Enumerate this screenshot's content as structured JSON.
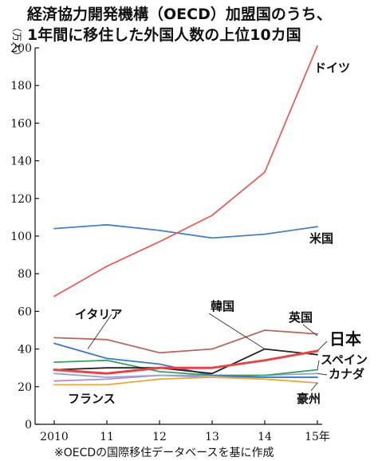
{
  "header": {
    "title_line1": "経済協力開発機構（OECD）加盟国のうち、",
    "title_line2": "1年間に移住した外国人数の上位10カ国",
    "unit": "（万人）"
  },
  "footnote": "※OECDの国際移住データベースを基に作成",
  "chart_data": {
    "type": "line",
    "title": "経済協力開発機構（OECD）加盟国のうち、1年間に移住した外国人数の上位10カ国",
    "ylabel": "（万人）",
    "xlabel": "",
    "ylim": [
      0,
      200
    ],
    "yticks": [
      0,
      20,
      40,
      60,
      80,
      100,
      120,
      140,
      160,
      180,
      200
    ],
    "x": [
      2010,
      2011,
      2012,
      2013,
      2014,
      2015
    ],
    "xtick_labels": [
      "2010",
      "11",
      "12",
      "13",
      "14",
      "15年"
    ],
    "grid": false,
    "legend": "direct-labels",
    "series": [
      {
        "name": "ドイツ",
        "color": "#e0605a",
        "values": [
          68,
          84,
          97,
          111,
          134,
          201
        ]
      },
      {
        "name": "米国",
        "color": "#4a7fc0",
        "values": [
          104,
          106,
          103,
          99,
          101,
          105
        ]
      },
      {
        "name": "英国",
        "color": "#b06e60",
        "values": [
          46,
          45,
          38,
          40,
          50,
          48
        ]
      },
      {
        "name": "韓国",
        "color": "#222222",
        "values": [
          29,
          30,
          30,
          27,
          40,
          37
        ]
      },
      {
        "name": "日本",
        "color": "#e04848",
        "values": [
          29,
          27,
          30,
          30,
          34,
          39
        ]
      },
      {
        "name": "イタリア",
        "color": "#3a78c4",
        "values": [
          43,
          35,
          32,
          26,
          25,
          25
        ]
      },
      {
        "name": "スペイン",
        "color": "#3aa060",
        "values": [
          33,
          34,
          28,
          26,
          26,
          29
        ]
      },
      {
        "name": "カナダ",
        "color": "#9aa0d4",
        "values": [
          27,
          25,
          26,
          26,
          26,
          27
        ]
      },
      {
        "name": "豪州",
        "color": "#e8a838",
        "values": [
          21,
          21,
          24,
          25,
          24,
          22
        ]
      },
      {
        "name": "フランス",
        "color": "#b090c8",
        "values": [
          23,
          24,
          26,
          25,
          25,
          25
        ]
      }
    ]
  }
}
